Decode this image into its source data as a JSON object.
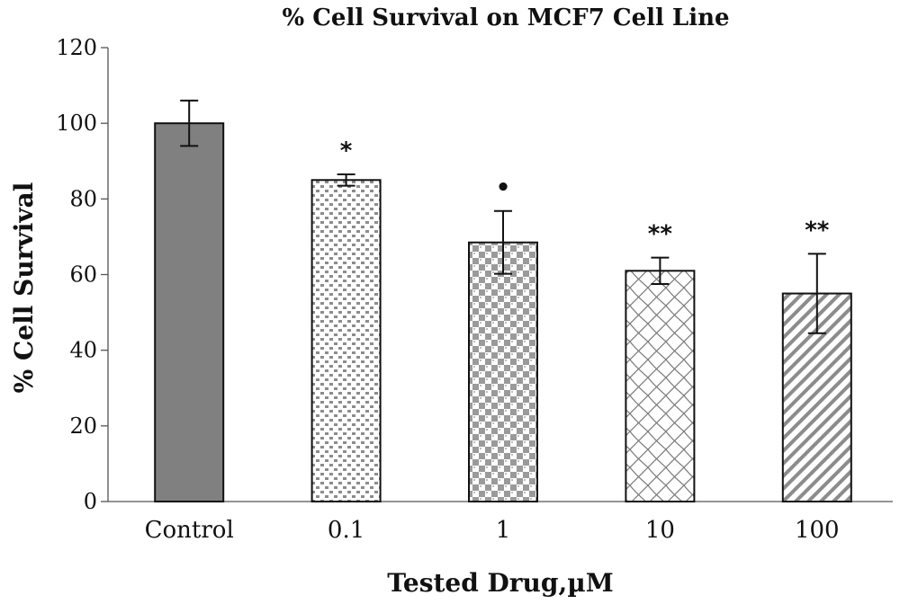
{
  "chart_data": {
    "type": "bar",
    "title": "% Cell Survival on MCF7 Cell Line",
    "xlabel": "Tested Drug,µM",
    "ylabel": "% Cell Survival",
    "categories": [
      "Control",
      "0.1",
      "1",
      "10",
      "100"
    ],
    "values": [
      100,
      85,
      68.5,
      61,
      55
    ],
    "error": [
      6,
      1.5,
      8.3,
      3.5,
      10.5
    ],
    "significance": [
      "",
      "*",
      "•",
      "**",
      "**"
    ],
    "ylim": [
      0,
      120
    ],
    "yticks": [
      "0",
      "20",
      "40",
      "60",
      "80",
      "100",
      "120"
    ],
    "grid": false,
    "bar_fills": [
      "solid",
      "dots",
      "checker",
      "lattice",
      "diagonal"
    ],
    "colors": {
      "solid": "#808080",
      "pattern": "#8c8c8c",
      "edge": "#111111"
    }
  }
}
